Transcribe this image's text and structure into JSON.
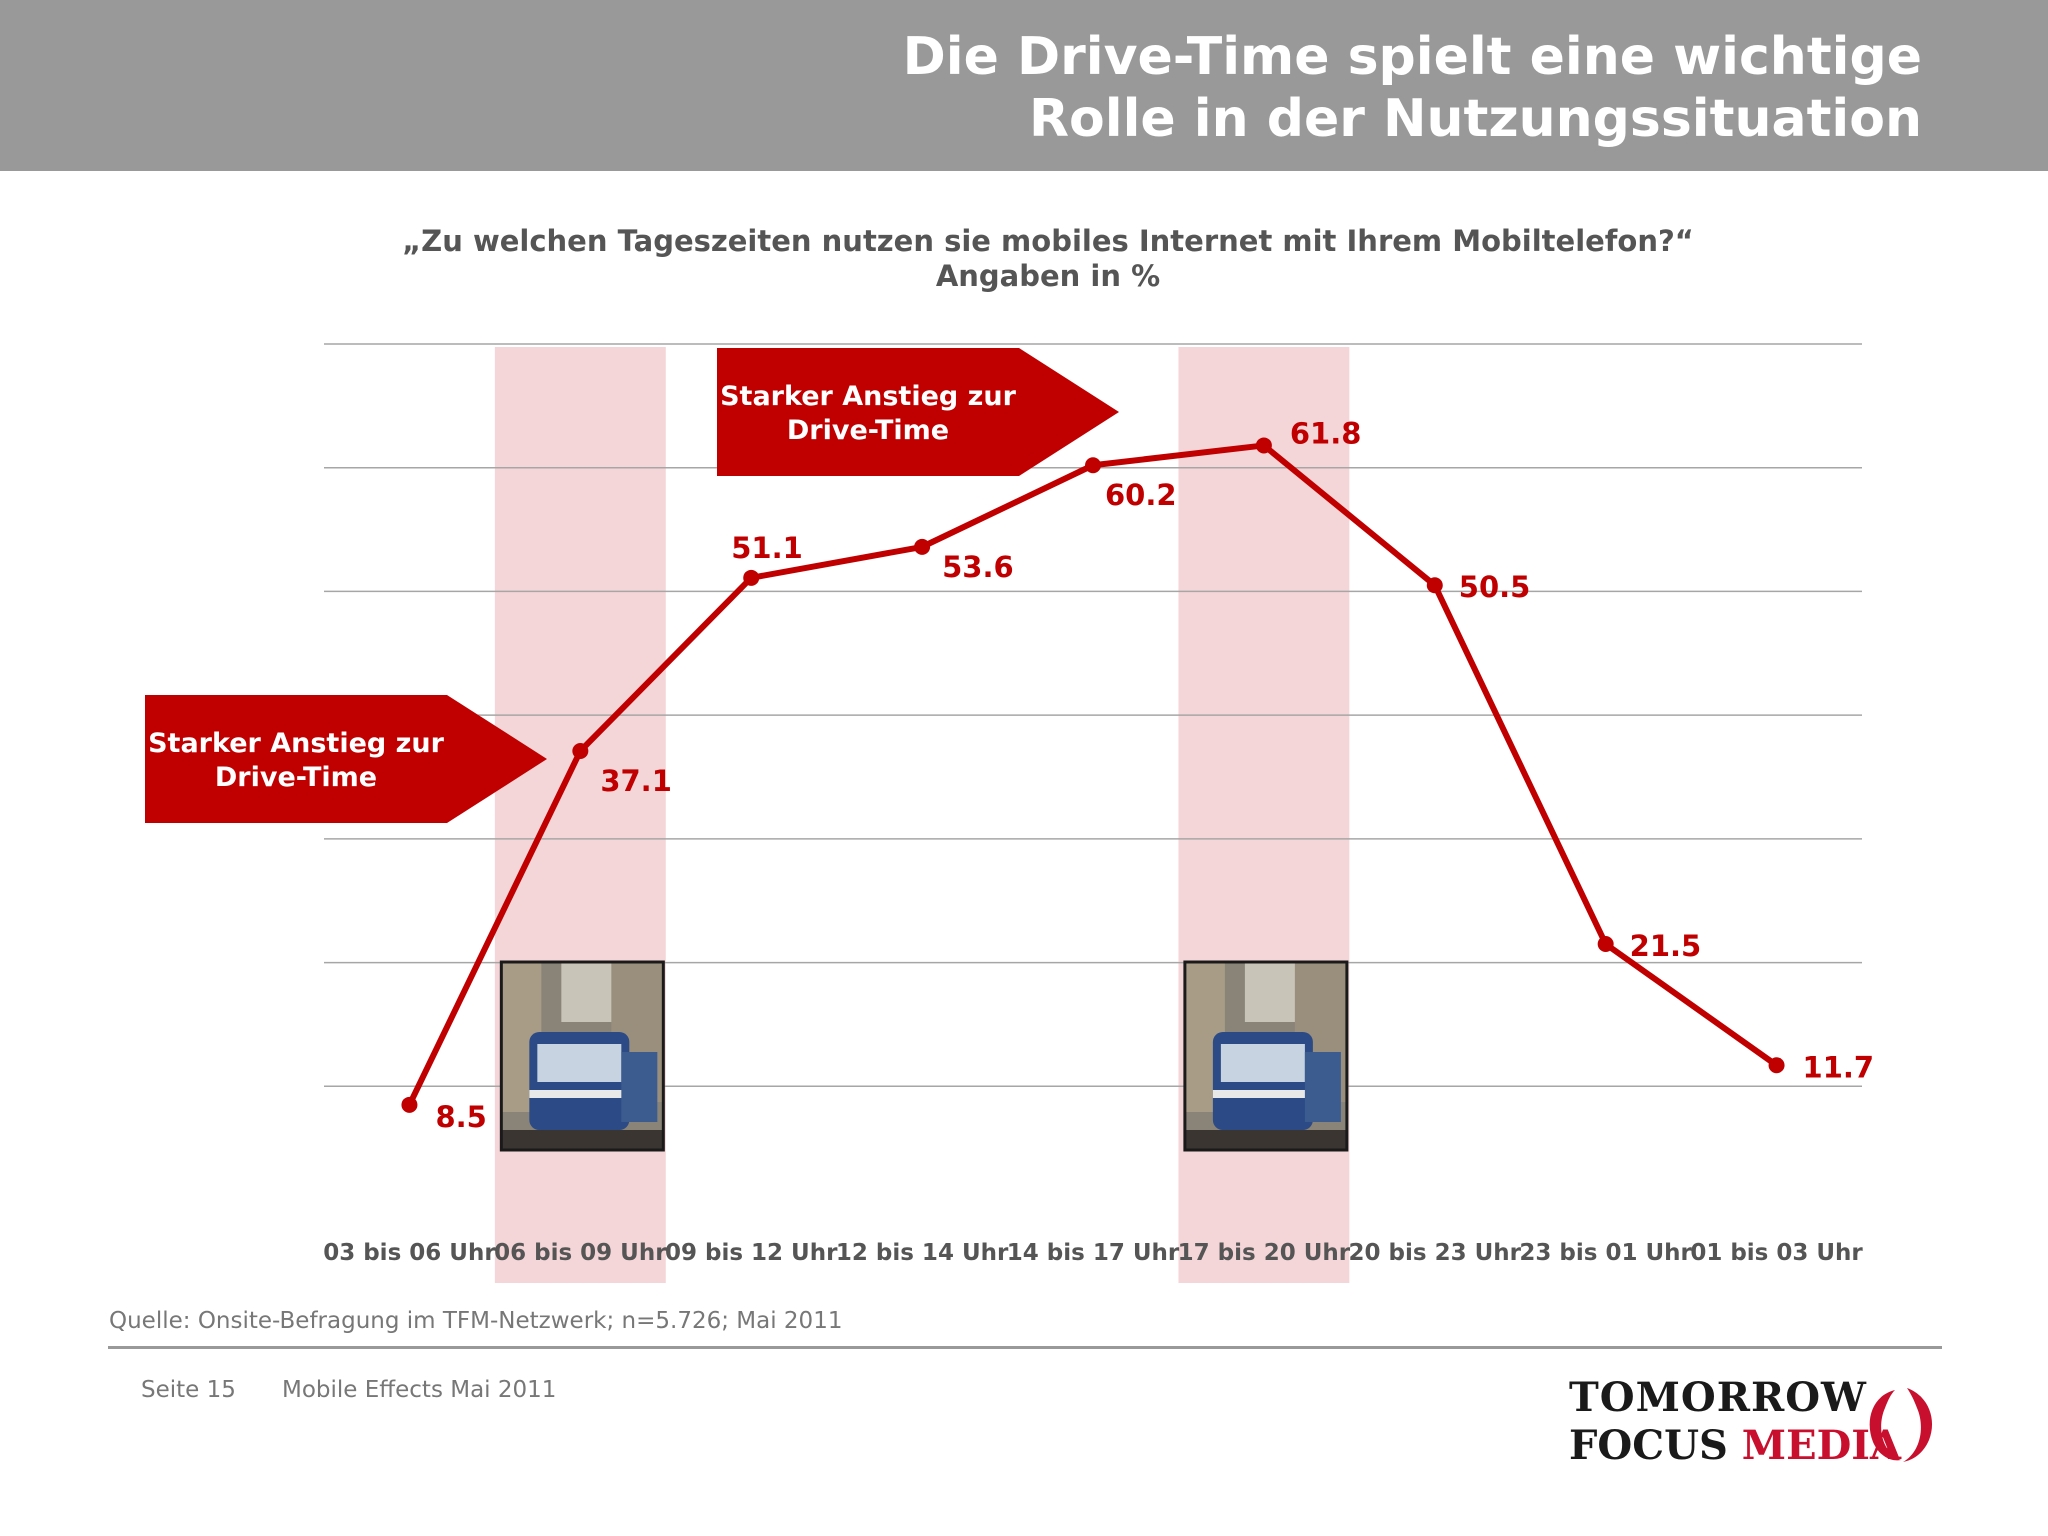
{
  "header": {
    "title_line1": "Die Drive-Time spielt eine wichtige",
    "title_line2": "Rolle in der Nutzungssituation"
  },
  "chart_heading": {
    "question": "„Zu welchen Tageszeiten nutzen sie mobiles Internet mit Ihrem Mobiltelefon?“",
    "unit_note": "Angaben in %"
  },
  "callouts": {
    "morning": [
      "Starker Anstieg zur",
      "Drive-Time"
    ],
    "evening": [
      "Starker Anstieg zur",
      "Drive-Time"
    ]
  },
  "chart_data": {
    "type": "line",
    "categories": [
      "03 bis 06 Uhr",
      "06 bis 09 Uhr",
      "09 bis 12 Uhr",
      "12 bis 14 Uhr",
      "14 bis 17 Uhr",
      "17 bis 20 Uhr",
      "20 bis 23 Uhr",
      "23 bis 01 Uhr",
      "01 bis 03 Uhr"
    ],
    "values": [
      8.5,
      37.1,
      51.1,
      53.6,
      60.2,
      61.8,
      50.5,
      21.5,
      11.7
    ],
    "value_labels": [
      "8.5",
      "37.1",
      "51.1",
      "53.6",
      "60.2",
      "61.8",
      "50.5",
      "21.5",
      "11.7"
    ],
    "ylim": [
      0,
      70
    ],
    "grid": true,
    "highlighted_categories": [
      "06 bis 09 Uhr",
      "17 bis 20 Uhr"
    ],
    "line_color": "#c00000"
  },
  "colors": {
    "accent_red": "#c00000",
    "highlight_band": "#f5d6d8",
    "header_gray": "#999999"
  },
  "footer": {
    "source": "Quelle: Onsite-Befragung im TFM-Netzwerk; n=5.726; Mai 2011",
    "page": "Seite 15",
    "deck": "Mobile Effects Mai 2011"
  },
  "logo": {
    "line1": "TOMORROW",
    "line2_dark": "FOCUS",
    "line2_accent": "MEDIA"
  }
}
